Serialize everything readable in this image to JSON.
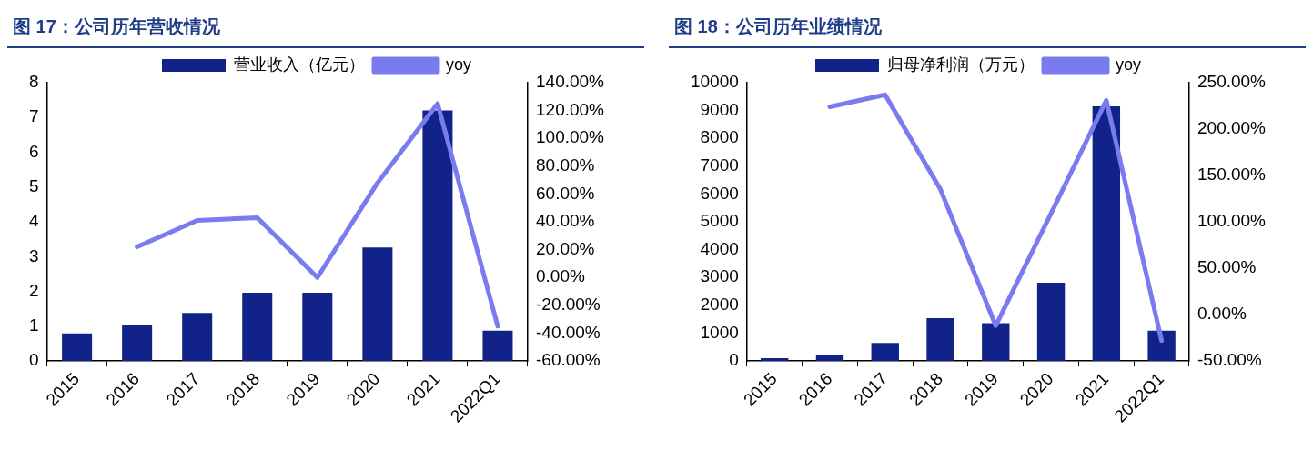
{
  "chart_data": [
    {
      "type": "bar",
      "title": "图 17：公司历年营收情况",
      "categories": [
        "2015",
        "2016",
        "2017",
        "2018",
        "2019",
        "2020",
        "2021",
        "2022Q1"
      ],
      "series": [
        {
          "name": "营业收入（亿元）",
          "color": "#112288",
          "values": [
            0.79,
            1.02,
            1.38,
            1.96,
            1.96,
            3.26,
            7.2,
            0.87
          ]
        },
        {
          "name": "yoy",
          "type": "line",
          "axis": "y2",
          "color": "#7b7bf0",
          "values": [
            null,
            22,
            41,
            43,
            0,
            68,
            125,
            -35
          ]
        }
      ],
      "ylim": [
        0,
        8
      ],
      "yticks": [
        0,
        1,
        2,
        3,
        4,
        5,
        6,
        7,
        8
      ],
      "y2lim": [
        -60,
        140
      ],
      "y2ticks": [
        {
          "value": -60,
          "label": "-60.00%"
        },
        {
          "value": -40,
          "label": "-40.00%"
        },
        {
          "value": -20,
          "label": "-20.00%"
        },
        {
          "value": 0,
          "label": "0.00%"
        },
        {
          "value": 20,
          "label": "20.00%"
        },
        {
          "value": 40,
          "label": "40.00%"
        },
        {
          "value": 60,
          "label": "60.00%"
        },
        {
          "value": 80,
          "label": "80.00%"
        },
        {
          "value": 100,
          "label": "100.00%"
        },
        {
          "value": 120,
          "label": "120.00%"
        },
        {
          "value": 140,
          "label": "140.00%"
        }
      ],
      "legend": "top",
      "marker": "none"
    },
    {
      "type": "bar",
      "title": "图 18：公司历年业绩情况",
      "categories": [
        "2015",
        "2016",
        "2017",
        "2018",
        "2019",
        "2020",
        "2021",
        "2022Q1"
      ],
      "series": [
        {
          "name": "归母净利润（万元）",
          "color": "#112288",
          "values": [
            100,
            200,
            650,
            1540,
            1360,
            2810,
            9150,
            1090
          ]
        },
        {
          "name": "yoy",
          "type": "line",
          "axis": "y2",
          "color": "#7b7bf0",
          "values": [
            null,
            224,
            237,
            135,
            -12,
            109,
            231,
            -28
          ]
        }
      ],
      "ylim": [
        0,
        10000
      ],
      "yticks": [
        0,
        1000,
        2000,
        3000,
        4000,
        5000,
        6000,
        7000,
        8000,
        9000,
        10000
      ],
      "y2lim": [
        -50,
        250
      ],
      "y2ticks": [
        {
          "value": -50,
          "label": "-50.00%"
        },
        {
          "value": 0,
          "label": "0.00%"
        },
        {
          "value": 50,
          "label": "50.00%"
        },
        {
          "value": 100,
          "label": "100.00%"
        },
        {
          "value": 150,
          "label": "150.00%"
        },
        {
          "value": 200,
          "label": "200.00%"
        },
        {
          "value": 250,
          "label": "250.00%"
        }
      ],
      "legend": "top",
      "marker": "none"
    }
  ]
}
